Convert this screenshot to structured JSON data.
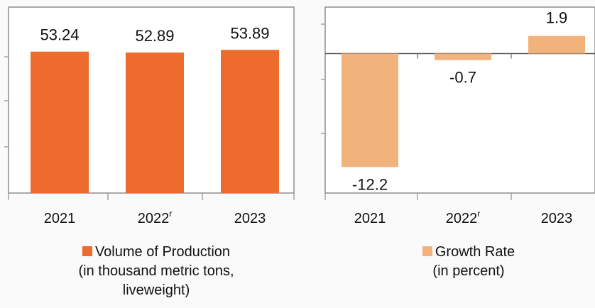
{
  "chart_data": [
    {
      "type": "bar",
      "categories": [
        "2021",
        "2022",
        "2023"
      ],
      "category_superscripts": [
        "",
        "r",
        ""
      ],
      "values": [
        53.24,
        52.89,
        53.89
      ],
      "data_labels": [
        "53.24",
        "52.89",
        "53.89"
      ],
      "ylim": [
        0,
        70
      ],
      "color": "#ec6b2d",
      "legend": [
        "Volume of Production",
        "(in thousand metric tons,",
        "liveweight)"
      ],
      "legend_placement": "bottom",
      "grid": false
    },
    {
      "type": "bar",
      "categories": [
        "2021",
        "2022",
        "2023"
      ],
      "category_superscripts": [
        "",
        "r",
        ""
      ],
      "values": [
        -12.2,
        -0.7,
        1.9
      ],
      "data_labels": [
        "-12.2",
        "-0.7",
        "1.9"
      ],
      "ylim": [
        -15,
        5
      ],
      "color": "#f2b27b",
      "legend": [
        "Growth Rate",
        "(in percent)"
      ],
      "legend_placement": "bottom",
      "grid": false
    }
  ]
}
